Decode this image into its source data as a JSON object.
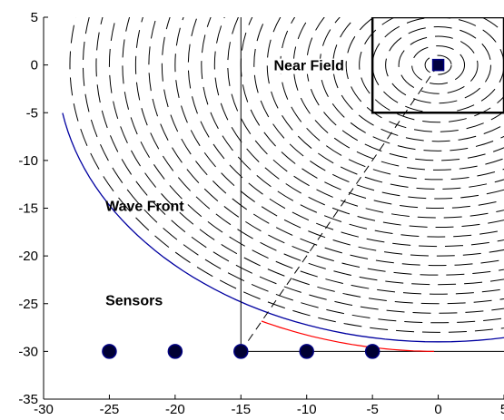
{
  "chart_data": {
    "type": "scatter",
    "title": "",
    "xlabel": "",
    "ylabel": "",
    "xlim": [
      -30,
      5
    ],
    "ylim": [
      -35,
      5
    ],
    "xticks": [
      "-30",
      "-25",
      "-20",
      "-15",
      "-10",
      "-5",
      "0",
      "5"
    ],
    "yticks": [
      "5",
      "0",
      "-5",
      "-10",
      "-15",
      "-20",
      "-25",
      "-30",
      "-35"
    ],
    "grid": false,
    "source": {
      "x": 0,
      "y": 0
    },
    "near_field_box": {
      "x": [
        -5,
        5
      ],
      "y": [
        -5,
        5
      ]
    },
    "wavefront_radii": [
      1,
      2,
      3,
      4,
      5,
      6,
      7,
      8,
      9,
      10,
      11,
      12,
      13,
      14,
      15,
      16,
      17,
      18,
      19,
      20,
      21,
      22,
      23,
      24,
      25,
      26,
      27,
      28
    ],
    "outer_envelope_radius": 29,
    "sensors": {
      "x": [
        -25,
        -20,
        -15,
        -10,
        -5
      ],
      "y": [
        -30,
        -30,
        -30,
        -30,
        -30
      ]
    },
    "annotations": [
      {
        "text": "Near Field",
        "x": -12.5,
        "y": 0
      },
      {
        "text": "Wave Front",
        "x": -25.3,
        "y": -14.7
      },
      {
        "text": "Sensors",
        "x": -25.3,
        "y": -24.6
      }
    ],
    "reference_lines": {
      "vertical": {
        "x": -15,
        "y": [
          -30,
          5
        ]
      },
      "horizontal": {
        "x": [
          -15,
          5
        ],
        "y": -30
      },
      "dashed_ray": {
        "from": [
          0,
          0
        ],
        "to": [
          -15,
          -30
        ]
      },
      "red_arc": {
        "radius": 30,
        "from_angle_deg": 243.4,
        "to_angle_deg": 270
      }
    },
    "colors": {
      "axes": "#000000",
      "wavefront": "#000000",
      "envelope": "#0000a0",
      "red_arc": "#ff0000",
      "sensor_fill": "#000033",
      "sensor_edge": "#000080",
      "source_fill": "#000040"
    }
  }
}
